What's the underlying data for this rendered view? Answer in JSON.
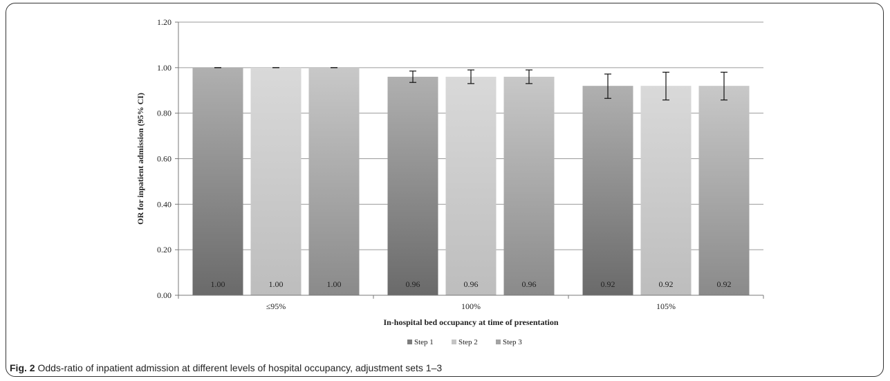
{
  "chart_data": {
    "type": "bar",
    "categories": [
      "≤95%",
      "100%",
      "105%"
    ],
    "series": [
      {
        "name": "Step 1",
        "values": [
          1.0,
          0.96,
          0.92
        ],
        "ci_low": [
          1.0,
          0.935,
          0.865
        ],
        "ci_high": [
          1.0,
          0.985,
          0.972
        ],
        "color": "#7d7d7d"
      },
      {
        "name": "Step 2",
        "values": [
          1.0,
          0.96,
          0.92
        ],
        "ci_low": [
          1.0,
          0.93,
          0.858
        ],
        "ci_high": [
          1.0,
          0.99,
          0.98
        ],
        "color": "#c4c4c4"
      },
      {
        "name": "Step 3",
        "values": [
          1.0,
          0.96,
          0.92
        ],
        "ci_low": [
          1.0,
          0.93,
          0.858
        ],
        "ci_high": [
          1.0,
          0.99,
          0.98
        ],
        "color": "#a3a3a3"
      }
    ],
    "value_labels": [
      [
        "1.00",
        "1.00",
        "1.00"
      ],
      [
        "0.96",
        "0.96",
        "0.96"
      ],
      [
        "0.92",
        "0.92",
        "0.92"
      ]
    ],
    "xlabel": "In-hospital bed occupancy at time of presentation",
    "ylabel": "OR for inpatient admission (95% CI)",
    "ylim": [
      0,
      1.2
    ],
    "yticks": [
      "0.00",
      "0.20",
      "0.40",
      "0.60",
      "0.80",
      "1.00",
      "1.20"
    ],
    "grid": true,
    "legend_position": "bottom"
  },
  "caption": {
    "label": "Fig. 2",
    "text": "Odds-ratio of inpatient admission at different levels of hospital occupancy, adjustment sets 1–3"
  }
}
